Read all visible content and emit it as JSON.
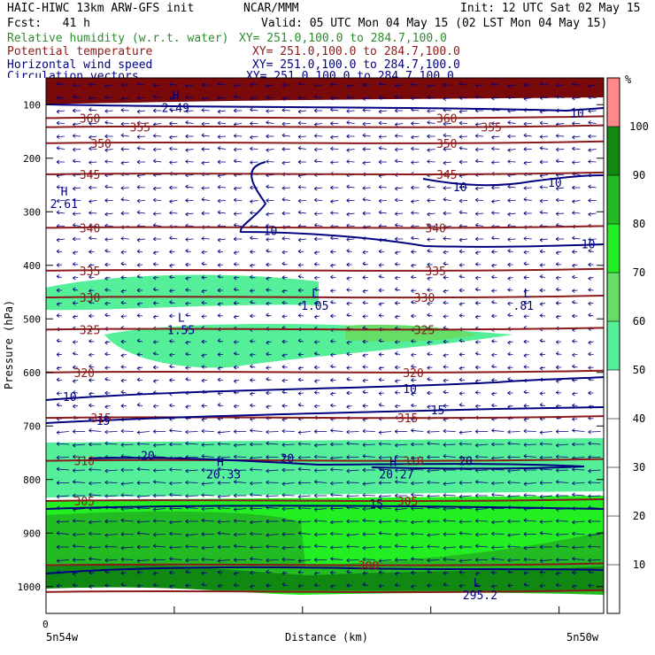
{
  "header": {
    "model": "HAIC-HIWC 13km ARW-GFS init",
    "org": "NCAR/MMM",
    "init": "Init: 12 UTC Sat 02 May 15",
    "fcst": "Fcst:   41 h",
    "valid": "Valid: 05 UTC Mon 04 May 15 (02 LST Mon 04 May 15)",
    "fields": [
      {
        "name": "Relative humidity (w.r.t. water)",
        "xy": "XY= 251.0,100.0 to 284.7,100.0",
        "color": "#2e8b2e"
      },
      {
        "name": "Potential temperature",
        "xy": "XY= 251.0,100.0 to 284.7,100.0",
        "color": "#8b1a1a"
      },
      {
        "name": "Horizontal wind speed",
        "xy": "XY= 251.0,100.0 to 284.7,100.0",
        "color": "#000080"
      },
      {
        "name": "Circulation vectors",
        "xy": "XY= 251.0,100.0 to 284.7,100.0",
        "color": "#000080"
      }
    ]
  },
  "chart_data": {
    "type": "cross-section",
    "ylabel": "Pressure (hPa)",
    "xlabel": "Distance (km)",
    "x_left_label": "5n54w",
    "x_right_label": "5n50w",
    "x_zero_label": "0",
    "y_ticks": [
      100,
      200,
      300,
      400,
      500,
      600,
      700,
      800,
      900,
      1000
    ],
    "y_scale": "linear",
    "ylim": [
      1050,
      50
    ],
    "colorbar": {
      "unit": "%",
      "ticks": [
        10,
        20,
        30,
        40,
        50,
        60,
        70,
        80,
        90,
        100
      ],
      "bands": [
        {
          "from": 50,
          "to": 60,
          "color": "#55ee99"
        },
        {
          "from": 60,
          "to": 70,
          "color": "#66dd66"
        },
        {
          "from": 70,
          "to": 80,
          "color": "#22ee22"
        },
        {
          "from": 80,
          "to": 90,
          "color": "#22bb22"
        },
        {
          "from": 90,
          "to": 100,
          "color": "#118811"
        },
        {
          "from": 100,
          "to": 110,
          "color": "#ff8888"
        }
      ]
    },
    "theta_contours": [
      {
        "value": 360,
        "p": 125,
        "labels": [
          {
            "text": "360",
            "x": 0.06
          },
          {
            "text": "360",
            "x": 0.7
          }
        ]
      },
      {
        "value": 355,
        "p": 142,
        "labels": [
          {
            "text": "355",
            "x": 0.15
          },
          {
            "text": "355",
            "x": 0.78
          }
        ]
      },
      {
        "value": 350,
        "p": 172,
        "labels": [
          {
            "text": "350",
            "x": 0.08
          },
          {
            "text": "350",
            "x": 0.7
          }
        ]
      },
      {
        "value": 345,
        "p": 230,
        "labels": [
          {
            "text": "345",
            "x": 0.06
          },
          {
            "text": "345",
            "x": 0.7
          }
        ]
      },
      {
        "value": 340,
        "p": 330,
        "labels": [
          {
            "text": "340",
            "x": 0.06
          },
          {
            "text": "340",
            "x": 0.68
          }
        ]
      },
      {
        "value": 335,
        "p": 410,
        "labels": [
          {
            "text": "335",
            "x": 0.06
          },
          {
            "text": "335",
            "x": 0.68
          }
        ]
      },
      {
        "value": 330,
        "p": 460,
        "labels": [
          {
            "text": "330",
            "x": 0.06
          },
          {
            "text": "330",
            "x": 0.66
          }
        ]
      },
      {
        "value": 325,
        "p": 520,
        "labels": [
          {
            "text": "325",
            "x": 0.06
          },
          {
            "text": "325",
            "x": 0.66
          }
        ]
      },
      {
        "value": 320,
        "p": 600,
        "labels": [
          {
            "text": "320",
            "x": 0.05
          },
          {
            "text": "320",
            "x": 0.64
          }
        ]
      },
      {
        "value": 315,
        "p": 685,
        "labels": [
          {
            "text": "315",
            "x": 0.08
          },
          {
            "text": "315",
            "x": 0.63
          }
        ]
      },
      {
        "value": 310,
        "p": 765,
        "labels": [
          {
            "text": "310",
            "x": 0.05
          },
          {
            "text": "310",
            "x": 0.64
          }
        ]
      },
      {
        "value": 305,
        "p": 840,
        "labels": [
          {
            "text": "305",
            "x": 0.05
          },
          {
            "text": "305",
            "x": 0.63
          }
        ]
      },
      {
        "value": 300,
        "p": 960,
        "labels": [
          {
            "text": "300",
            "x": 0.56
          }
        ]
      },
      {
        "value": 295,
        "p": 1010,
        "labels": []
      }
    ],
    "wind_labels": [
      {
        "text": "10",
        "x": 0.94,
        "p": 115
      },
      {
        "text": "10",
        "x": 0.73,
        "p": 253
      },
      {
        "text": "10",
        "x": 0.9,
        "p": 245
      },
      {
        "text": "10",
        "x": 0.39,
        "p": 335
      },
      {
        "text": "10",
        "x": 0.96,
        "p": 360
      },
      {
        "text": "10",
        "x": 0.64,
        "p": 630
      },
      {
        "text": "10",
        "x": 0.03,
        "p": 645
      },
      {
        "text": "15",
        "x": 0.69,
        "p": 670
      },
      {
        "text": "15",
        "x": 0.09,
        "p": 690
      },
      {
        "text": "20",
        "x": 0.17,
        "p": 755
      },
      {
        "text": "20",
        "x": 0.42,
        "p": 760
      },
      {
        "text": "20",
        "x": 0.74,
        "p": 765
      },
      {
        "text": "15",
        "x": 0.58,
        "p": 845
      }
    ],
    "extrema": [
      {
        "type": "H",
        "label": "2.61",
        "x": 0.02,
        "p": 280
      },
      {
        "type": "H",
        "label": "2.49",
        "x": 0.22,
        "p": 100
      },
      {
        "type": "L",
        "label": "1.55",
        "x": 0.23,
        "p": 515
      },
      {
        "type": "L",
        "label": "1.05",
        "x": 0.47,
        "p": 470
      },
      {
        "type": "L",
        "label": ".81",
        "x": 0.85,
        "p": 470
      },
      {
        "type": "H",
        "label": "20.33",
        "x": 0.3,
        "p": 785
      },
      {
        "type": "H",
        "label": "20.27",
        "x": 0.61,
        "p": 785
      },
      {
        "type": "L",
        "label": "295.2",
        "x": 0.76,
        "p": 1010
      }
    ]
  }
}
